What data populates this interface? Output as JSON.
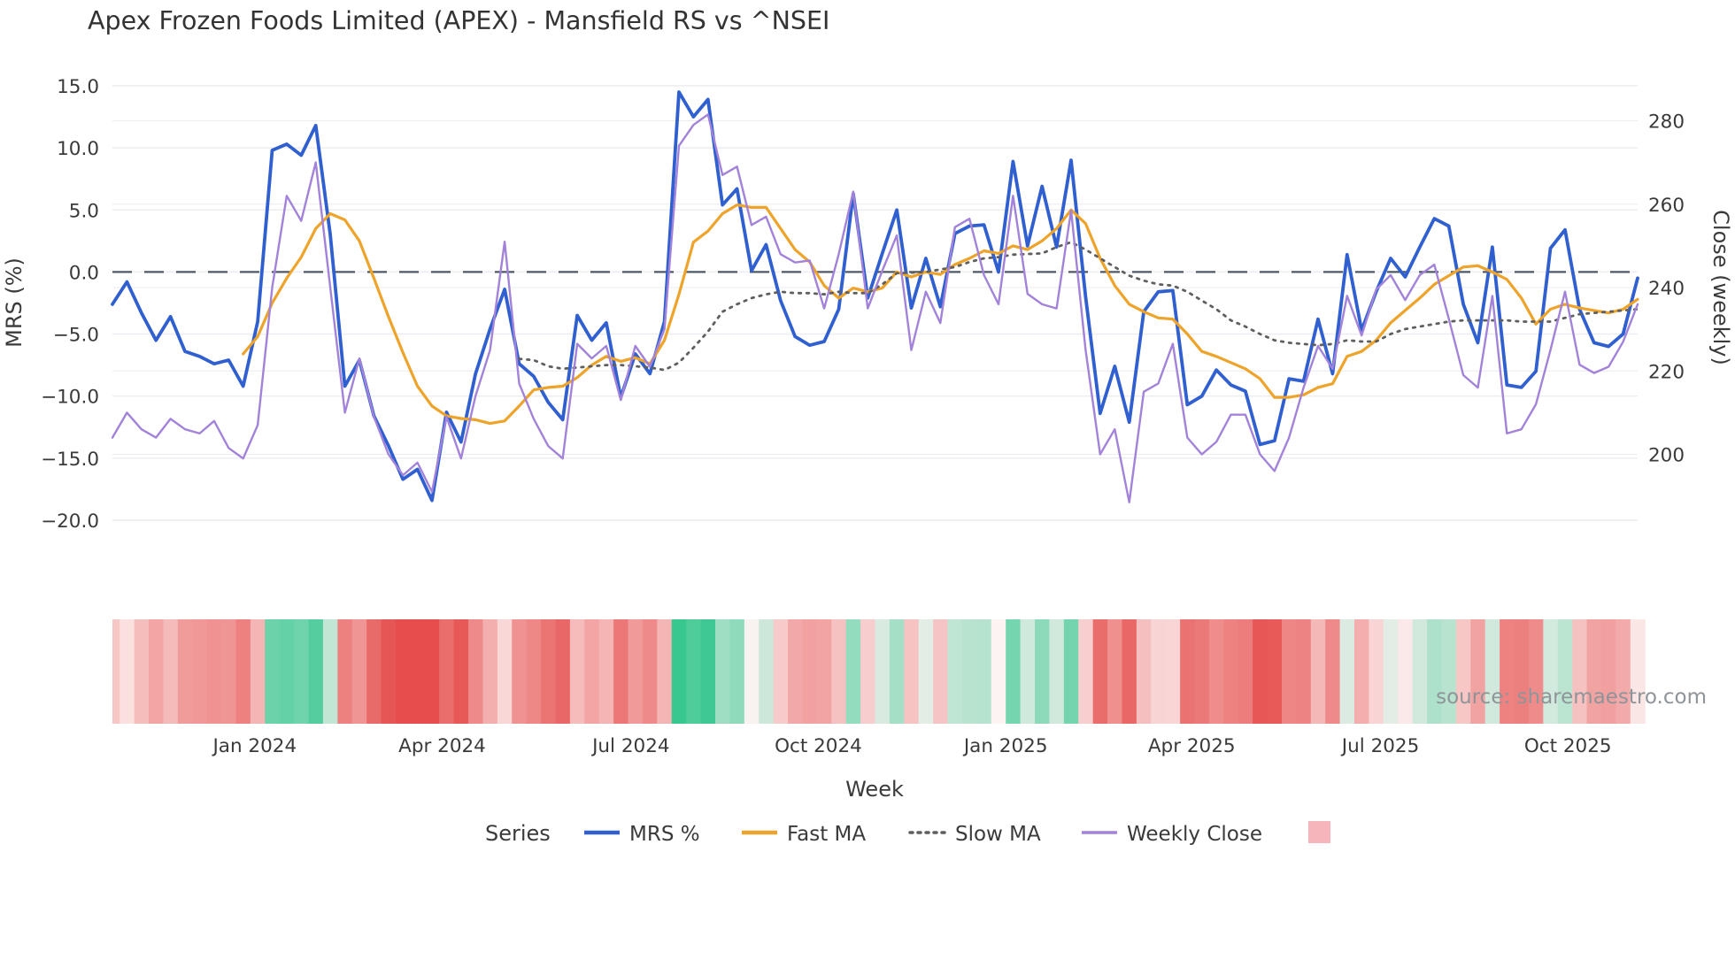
{
  "title": "Apex Frozen Foods Limited (APEX) - Mansfield RS vs ^NSEI",
  "watermark": "source: sharemaestro.com",
  "axes": {
    "left": {
      "label": "MRS (%)",
      "ticks": [
        15.0,
        10.0,
        5.0,
        0.0,
        -5.0,
        -10.0,
        -15.0,
        -20.0
      ]
    },
    "right": {
      "label": "Close (weekly)",
      "ticks": [
        280,
        260,
        240,
        220,
        200
      ]
    },
    "x": {
      "label": "Week",
      "ticks": [
        {
          "label": "Jan 2024",
          "week": 9.8
        },
        {
          "label": "Apr 2024",
          "week": 22.7
        },
        {
          "label": "Jul 2024",
          "week": 35.7
        },
        {
          "label": "Oct 2024",
          "week": 48.6
        },
        {
          "label": "Jan 2025",
          "week": 61.5
        },
        {
          "label": "Apr 2025",
          "week": 74.3
        },
        {
          "label": "Jul 2025",
          "week": 87.3
        },
        {
          "label": "Oct 2025",
          "week": 100.2
        }
      ]
    }
  },
  "legend": {
    "title": "Series",
    "items": [
      {
        "label": "MRS %",
        "color": "#3060d0",
        "style": "solid"
      },
      {
        "label": "Fast MA",
        "color": "#eea32a",
        "style": "solid"
      },
      {
        "label": "Slow MA",
        "color": "#5f5f5f",
        "style": "dotted"
      },
      {
        "label": "Weekly Close",
        "color": "#a283d9",
        "style": "solid"
      },
      {
        "label": "",
        "color": "#f5b5bb",
        "style": "swatch"
      }
    ]
  },
  "colors": {
    "grid": "#ececf1",
    "zero_line": "#4f5866",
    "tick_text": "#3a3a3a",
    "title_text": "#333333",
    "watermark_text": "#8f9499",
    "heat_negative": "#e54e4c",
    "heat_positive": "#34c68d",
    "heat_neutral": "#fdf3f3"
  },
  "chart_data": {
    "type": "line",
    "x_unit": "week",
    "n_weeks": 106,
    "ylim_left": [
      -21.5,
      17.0
    ],
    "right_axis_ticks": [
      280,
      260,
      240,
      220,
      200
    ],
    "grid": true,
    "legend_position": "bottom",
    "heatmap_strip": {
      "encodes": "MRS % value per week (red negative, green positive)"
    },
    "series": [
      {
        "name": "MRS %",
        "axis": "left",
        "color": "#3060d0",
        "style": "solid",
        "width": 3.8,
        "values": [
          -2.6,
          -0.8,
          -3.3,
          -5.5,
          -3.6,
          -6.4,
          -6.8,
          -7.4,
          -7.1,
          -9.2,
          -4.0,
          9.8,
          10.3,
          9.4,
          11.8,
          3.0,
          -9.2,
          -7.1,
          -11.6,
          -14.0,
          -16.7,
          -15.9,
          -18.4,
          -11.3,
          -13.7,
          -8.2,
          -4.6,
          -1.4,
          -7.4,
          -8.4,
          -10.5,
          -11.9,
          -3.5,
          -5.5,
          -4.1,
          -10.1,
          -6.6,
          -8.2,
          -4.0,
          14.5,
          12.5,
          13.9,
          5.4,
          6.7,
          0.1,
          2.2,
          -2.3,
          -5.2,
          -5.9,
          -5.6,
          -3.0,
          6.3,
          -2.1,
          1.5,
          5.0,
          -2.9,
          1.1,
          -2.8,
          3.1,
          3.7,
          3.8,
          0.0,
          8.9,
          2.1,
          6.9,
          2.0,
          9.0,
          -2.0,
          -11.4,
          -7.6,
          -12.1,
          -3.2,
          -1.6,
          -1.5,
          -10.7,
          -10.0,
          -7.9,
          -9.1,
          -9.6,
          -13.9,
          -13.6,
          -8.6,
          -8.8,
          -3.8,
          -8.2,
          1.4,
          -4.7,
          -1.6,
          1.1,
          -0.4,
          2.0,
          4.3,
          3.7,
          -2.6,
          -5.7,
          2.0,
          -9.1,
          -9.3,
          -8.0,
          1.9,
          3.4,
          -3.0,
          -5.7,
          -6.0,
          -5.0,
          -0.5
        ]
      },
      {
        "name": "Fast MA",
        "axis": "left",
        "color": "#eea32a",
        "style": "solid",
        "width": 3.2,
        "values": [
          null,
          null,
          null,
          null,
          null,
          null,
          null,
          null,
          null,
          -6.6,
          -5.2,
          -2.5,
          -0.5,
          1.2,
          3.5,
          4.7,
          4.2,
          2.5,
          -0.5,
          -3.6,
          -6.5,
          -9.2,
          -10.8,
          -11.6,
          -11.8,
          -11.9,
          -12.2,
          -12.0,
          -10.8,
          -9.5,
          -9.3,
          -9.2,
          -8.5,
          -7.5,
          -6.8,
          -7.2,
          -6.9,
          -7.4,
          -5.5,
          -1.8,
          2.4,
          3.3,
          4.7,
          5.4,
          5.2,
          5.2,
          3.5,
          1.8,
          0.8,
          -1.1,
          -2.1,
          -1.3,
          -1.6,
          -1.3,
          0.0,
          -0.4,
          0.0,
          -0.2,
          0.6,
          1.1,
          1.7,
          1.5,
          2.1,
          1.8,
          2.5,
          3.5,
          5.0,
          3.9,
          1.1,
          -1.1,
          -2.6,
          -3.2,
          -3.7,
          -3.8,
          -5.0,
          -6.4,
          -6.8,
          -7.3,
          -7.8,
          -8.6,
          -10.1,
          -10.1,
          -9.9,
          -9.3,
          -9.0,
          -6.8,
          -6.4,
          -5.5,
          -4.1,
          -3.1,
          -2.1,
          -1.0,
          -0.3,
          0.4,
          0.5,
          0.0,
          -0.6,
          -2.1,
          -4.2,
          -3.0,
          -2.6,
          -2.9,
          -3.1,
          -3.3,
          -3.0,
          -2.2
        ]
      },
      {
        "name": "Slow MA",
        "axis": "left",
        "color": "#5f5f5f",
        "style": "dotted",
        "width": 2.8,
        "values": [
          null,
          null,
          null,
          null,
          null,
          null,
          null,
          null,
          null,
          null,
          null,
          null,
          null,
          null,
          null,
          null,
          null,
          null,
          null,
          null,
          null,
          null,
          null,
          null,
          null,
          null,
          null,
          null,
          -7.0,
          -7.1,
          -7.6,
          -7.8,
          -7.7,
          -7.6,
          -7.5,
          -7.5,
          -7.6,
          -7.7,
          -7.9,
          -7.3,
          -6.1,
          -4.8,
          -3.2,
          -2.6,
          -2.1,
          -1.8,
          -1.6,
          -1.7,
          -1.7,
          -1.8,
          -1.6,
          -1.7,
          -1.7,
          -1.0,
          -0.1,
          -0.05,
          0.0,
          0.2,
          0.4,
          0.8,
          1.1,
          1.2,
          1.4,
          1.45,
          1.5,
          2.0,
          2.4,
          1.8,
          1.1,
          0.4,
          -0.3,
          -0.7,
          -1.0,
          -1.1,
          -1.6,
          -2.3,
          -3.0,
          -3.9,
          -4.4,
          -5.0,
          -5.5,
          -5.7,
          -5.8,
          -5.9,
          -5.8,
          -5.5,
          -5.6,
          -5.6,
          -5.0,
          -4.6,
          -4.4,
          -4.2,
          -4.0,
          -3.9,
          -3.9,
          -3.9,
          -3.9,
          -4.0,
          -4.0,
          -4.0,
          -3.7,
          -3.4,
          -3.3,
          -3.2,
          -3.1,
          -3.0
        ]
      },
      {
        "name": "Weekly Close",
        "axis": "right",
        "color": "#a283d9",
        "style": "solid",
        "width": 2.4,
        "values": [
          204,
          210,
          206,
          204,
          208.5,
          206,
          205,
          208,
          201.5,
          199,
          207,
          240,
          262,
          256,
          270,
          240,
          210,
          223,
          209,
          200,
          195,
          198,
          191,
          209,
          199,
          214,
          225,
          251,
          217,
          208.5,
          202,
          199,
          226.5,
          223,
          226,
          213,
          226,
          221,
          230,
          274,
          279,
          281.5,
          267,
          269,
          255,
          257,
          248,
          246,
          246.5,
          235,
          248,
          263,
          235,
          244,
          252.5,
          225,
          239,
          231.5,
          254.5,
          256.5,
          243,
          236,
          262,
          238.5,
          236,
          235,
          258.5,
          225,
          200,
          206,
          188.5,
          215,
          217,
          226.5,
          204,
          200,
          203,
          209.5,
          209.5,
          200,
          196,
          204,
          216,
          226,
          220.5,
          238,
          228.5,
          239.5,
          243,
          237,
          243,
          245.5,
          232.5,
          219,
          216,
          238,
          205,
          206,
          212,
          225,
          239,
          221.5,
          219.5,
          221,
          227,
          236
        ]
      }
    ]
  }
}
